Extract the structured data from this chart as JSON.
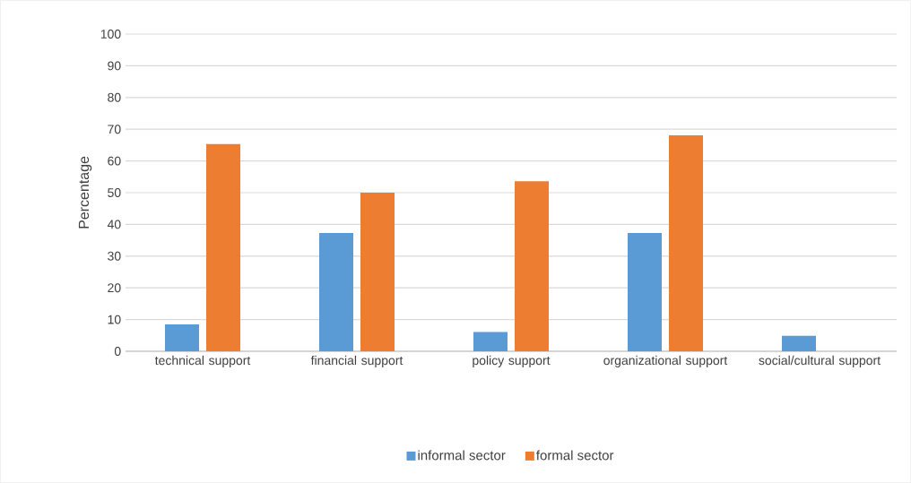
{
  "chart_data": {
    "type": "bar",
    "ylabel": "Percentage",
    "categories": [
      "technical support",
      "financial support",
      "policy support",
      "organizational support",
      "social/cultural support"
    ],
    "series": [
      {
        "name": "informal sector",
        "color": "#5b9bd5",
        "values": [
          8.5,
          37.3,
          6.1,
          37.3,
          4.9
        ]
      },
      {
        "name": "formal sector",
        "color": "#ed7d31",
        "values": [
          65.3,
          50,
          53.6,
          68.1,
          0
        ]
      }
    ],
    "ylim": [
      0,
      100
    ],
    "yticks": [
      0,
      10,
      20,
      30,
      40,
      50,
      60,
      70,
      80,
      90,
      100
    ],
    "grid": "y",
    "legend": "bottom"
  }
}
